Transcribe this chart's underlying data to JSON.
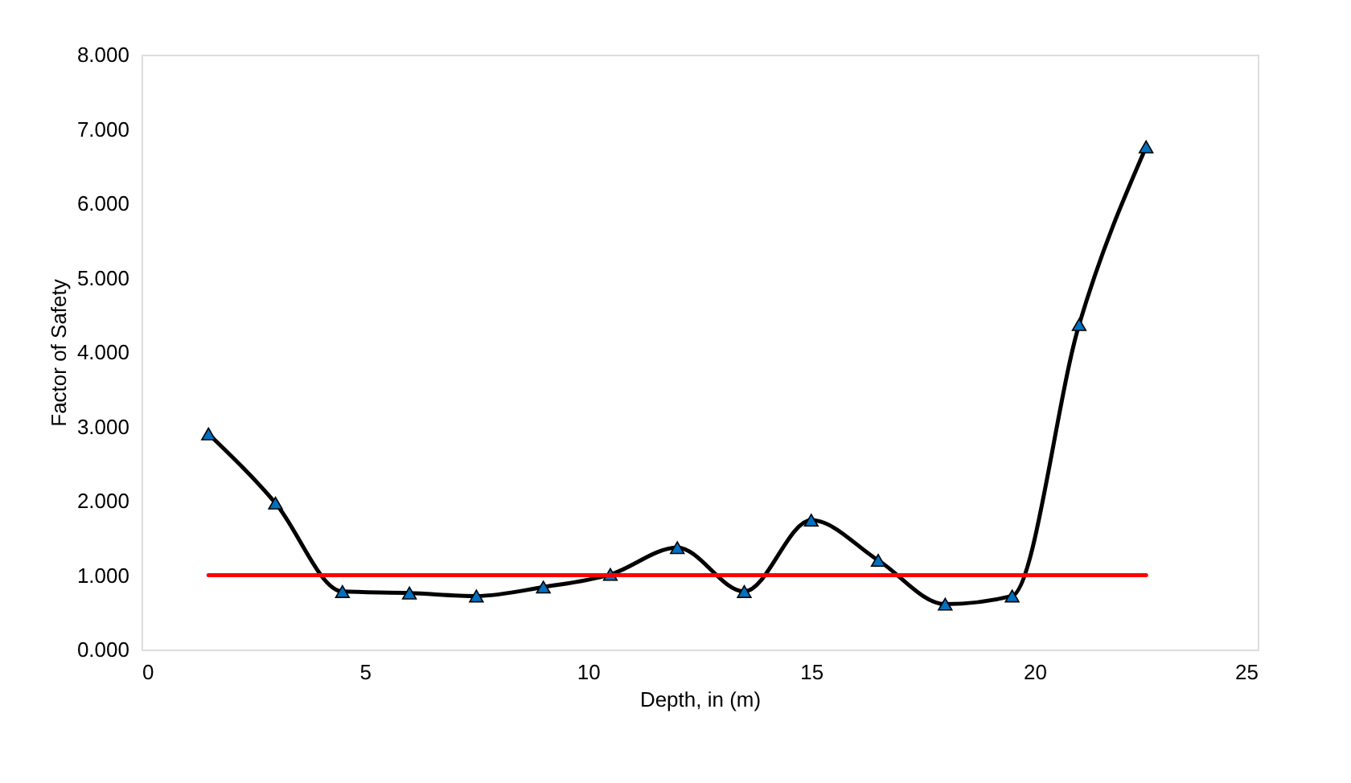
{
  "chart_data": {
    "type": "line",
    "xlabel": "Depth, in (m)",
    "ylabel": "Factor of Safety",
    "xlim": [
      0,
      25
    ],
    "xticks": [
      0,
      5,
      10,
      15,
      20,
      25
    ],
    "ylim": [
      0,
      8
    ],
    "yticks": [
      {
        "value": 0,
        "label": "0.000"
      },
      {
        "value": 1,
        "label": "1.000"
      },
      {
        "value": 2,
        "label": "2.000"
      },
      {
        "value": 3,
        "label": "3.000"
      },
      {
        "value": 4,
        "label": "4.000"
      },
      {
        "value": 5,
        "label": "5.000"
      },
      {
        "value": 6,
        "label": "6.000"
      },
      {
        "value": 7,
        "label": "7.000"
      },
      {
        "value": 8,
        "label": "8.000"
      }
    ],
    "grid": false,
    "series": [
      {
        "marker": "triangle",
        "line_style": "solid",
        "color": "#000000",
        "colors": [
          "#0070c0",
          "#0070c0",
          "#0070c0",
          "#0070c0",
          "#0070c0",
          "#0070c0",
          "#0070c0",
          "#0070c0",
          "#0070c0",
          "#0070c0",
          "#0070c0",
          "#0070c0",
          "#0070c0",
          "#0070c0",
          "#0070c0"
        ],
        "x": [
          1.5,
          3,
          4.5,
          6,
          7.5,
          9,
          10.5,
          12,
          13.5,
          15,
          16.5,
          18,
          19.5,
          21,
          22.5
        ],
        "values": [
          2.9,
          1.97,
          0.78,
          0.76,
          0.72,
          0.84,
          1.01,
          1.37,
          0.78,
          1.74,
          1.2,
          0.61,
          0.72,
          4.37,
          6.76
        ]
      },
      {
        "marker": "none",
        "line_style": "solid",
        "color": "#ff0000",
        "x": [
          1.5,
          22.5
        ],
        "values": [
          1,
          1
        ]
      }
    ]
  }
}
